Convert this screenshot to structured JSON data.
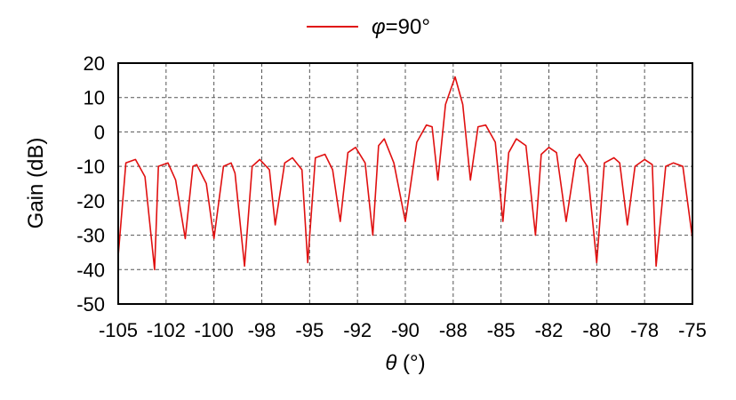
{
  "chart_data": {
    "type": "line",
    "xlabel_symbol": "θ",
    "xlabel_unit": " (°)",
    "ylabel": "Gain (dB)",
    "xlim": [
      -105,
      -75
    ],
    "ylim": [
      -50,
      20
    ],
    "x_tick_labels": [
      "-105",
      "-102",
      "-100",
      "-98",
      "-95",
      "-92",
      "-90",
      "-88",
      "-85",
      "-82",
      "-80",
      "-78",
      "-75"
    ],
    "y_ticks": [
      20,
      10,
      0,
      -10,
      -20,
      -30,
      -40,
      -50
    ],
    "y_tick_labels": [
      "20",
      "10",
      "0",
      "-10",
      "-20",
      "-30",
      "-40",
      "-50"
    ],
    "grid": true,
    "legend_position": "top-center",
    "series": [
      {
        "name_symbol": "φ",
        "name_rest": "=90°",
        "color": "#e01010",
        "x": [
          -105.0,
          -104.6,
          -104.1,
          -103.6,
          -103.1,
          -102.9,
          -102.4,
          -102.0,
          -101.5,
          -101.1,
          -100.9,
          -100.4,
          -100.0,
          -99.5,
          -99.1,
          -98.9,
          -98.4,
          -98.0,
          -97.6,
          -97.1,
          -96.8,
          -96.3,
          -95.9,
          -95.4,
          -95.1,
          -94.7,
          -94.2,
          -93.8,
          -93.4,
          -93.0,
          -92.6,
          -92.1,
          -91.7,
          -91.4,
          -91.1,
          -90.6,
          -90.0,
          -89.4,
          -88.9,
          -88.6,
          -88.3,
          -87.9,
          -87.4,
          -87.0,
          -86.6,
          -86.2,
          -85.8,
          -85.3,
          -84.9,
          -84.6,
          -84.2,
          -83.7,
          -83.2,
          -82.9,
          -82.5,
          -82.1,
          -81.6,
          -81.1,
          -80.9,
          -80.5,
          -80.0,
          -79.6,
          -79.1,
          -78.8,
          -78.4,
          -78.0,
          -77.5,
          -77.1,
          -76.9,
          -76.4,
          -76.0,
          -75.5,
          -75.0
        ],
        "y": [
          -36.0,
          -9.0,
          -8.0,
          -13.0,
          -40.0,
          -10.0,
          -9.0,
          -14.0,
          -31.0,
          -10.0,
          -9.5,
          -15.0,
          -31.0,
          -10.0,
          -9.0,
          -12.0,
          -39.0,
          -10.0,
          -8.0,
          -11.0,
          -27.0,
          -9.0,
          -7.5,
          -11.0,
          -38.0,
          -7.5,
          -6.5,
          -11.0,
          -26.0,
          -6.0,
          -4.5,
          -9.0,
          -30.0,
          -4.0,
          -2.0,
          -9.0,
          -26.0,
          -3.0,
          2.0,
          1.5,
          -14.0,
          8.0,
          16.0,
          8.0,
          -14.0,
          1.5,
          2.0,
          -3.0,
          -26.0,
          -6.0,
          -2.0,
          -4.0,
          -30.0,
          -6.5,
          -4.5,
          -6.0,
          -26.0,
          -8.0,
          -6.5,
          -10.0,
          -38.0,
          -9.0,
          -7.5,
          -9.0,
          -27.0,
          -10.0,
          -8.0,
          -9.5,
          -39.0,
          -10.0,
          -9.0,
          -10.0,
          -31.0
        ]
      }
    ]
  }
}
